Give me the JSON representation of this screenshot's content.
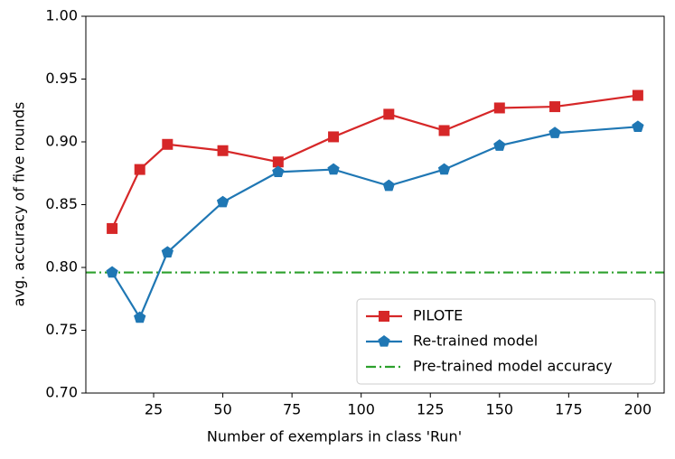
{
  "chart_data": {
    "type": "line",
    "x_label": "Number of exemplars in class 'Run'",
    "y_label": "avg. accuracy of five rounds",
    "x": [
      10,
      20,
      30,
      50,
      70,
      90,
      110,
      130,
      150,
      170,
      200
    ],
    "series": [
      {
        "name": "PILOTE",
        "color": "#d62728",
        "marker": "square",
        "values": [
          0.831,
          0.878,
          0.898,
          0.893,
          0.884,
          0.904,
          0.922,
          0.909,
          0.927,
          0.928,
          0.937
        ]
      },
      {
        "name": "Re-trained model",
        "color": "#1f77b4",
        "marker": "pentagon",
        "values": [
          0.796,
          0.76,
          0.812,
          0.852,
          0.876,
          0.878,
          0.865,
          0.878,
          0.897,
          0.907,
          0.912
        ]
      }
    ],
    "reference_line": {
      "name": "Pre-trained model accuracy",
      "color": "#2ca02c",
      "value": 0.796
    },
    "xlim": [
      0.5,
      209.5
    ],
    "ylim": [
      0.7,
      1.0
    ],
    "xticks": [
      25,
      50,
      75,
      100,
      125,
      150,
      175,
      200
    ],
    "yticks": [
      {
        "value": 0.7,
        "label": "0.70"
      },
      {
        "value": 0.75,
        "label": "0.75"
      },
      {
        "value": 0.8,
        "label": "0.80"
      },
      {
        "value": 0.85,
        "label": "0.85"
      },
      {
        "value": 0.9,
        "label": "0.90"
      },
      {
        "value": 0.95,
        "label": "0.95"
      },
      {
        "value": 1.0,
        "label": "1.00"
      }
    ],
    "legend": "lower right"
  }
}
